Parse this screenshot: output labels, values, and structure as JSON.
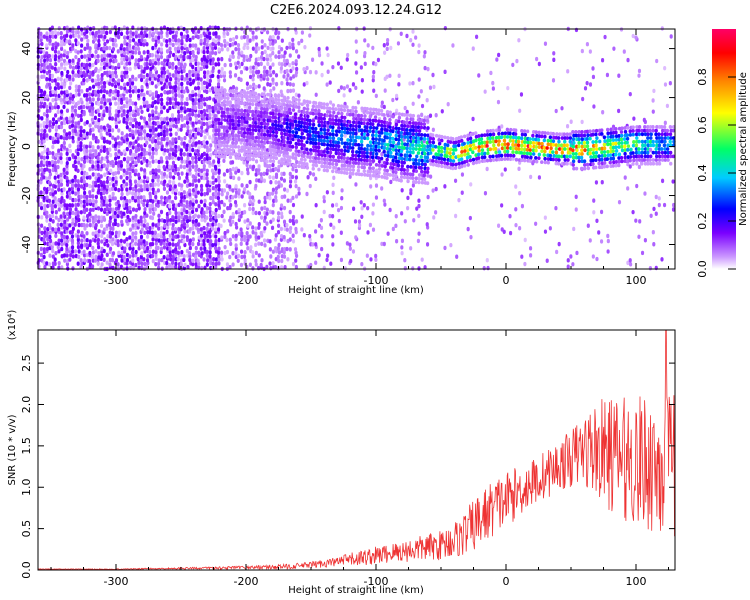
{
  "title": "C2E6.2024.093.12.24.G12",
  "chart_data": [
    {
      "type": "heatmap",
      "title": "C2E6.2024.093.12.24.G12",
      "xlabel": "Height of straight line (km)",
      "ylabel": "Frequency (Hz)",
      "xlim": [
        -360,
        130
      ],
      "ylim": [
        -50,
        48
      ],
      "x_ticks": [
        "-300",
        "-200",
        "-100",
        "0",
        "100"
      ],
      "y_ticks": [
        "40",
        "20",
        "0",
        "-20",
        "-40"
      ],
      "colorbar": {
        "label": "Normalized spectral amplitude",
        "range": [
          0.0,
          1.0
        ],
        "ticks": [
          "0.0",
          "0.2",
          "0.4",
          "0.6",
          "0.8"
        ],
        "colors": [
          "#ffffff",
          "#cc99ff",
          "#7a00ff",
          "#0000ff",
          "#00ccff",
          "#00ff66",
          "#ffff00",
          "#ff8800",
          "#ff0000",
          "#ff0066"
        ]
      },
      "ridge": {
        "x": [
          -220,
          -180,
          -150,
          -120,
          -100,
          -80,
          -60,
          -40,
          -20,
          0,
          20,
          40,
          60,
          80,
          100,
          120,
          130
        ],
        "frequency": [
          10,
          8,
          5,
          3,
          2,
          0,
          -1,
          -3,
          0,
          1,
          0,
          -1,
          -1,
          0,
          1,
          1,
          1
        ],
        "amplitude": [
          0.15,
          0.2,
          0.3,
          0.35,
          0.4,
          0.45,
          0.5,
          0.7,
          0.9,
          0.95,
          0.9,
          0.85,
          0.8,
          0.7,
          0.55,
          0.45,
          0.4
        ]
      }
    },
    {
      "type": "line",
      "xlabel": "Height of straight line (km)",
      "ylabel": "SNR (10 * v/v)",
      "y_multiplier_label": "(x10⁴)",
      "xlim": [
        -360,
        130
      ],
      "ylim": [
        0,
        2.9
      ],
      "x_ticks": [
        "-300",
        "-200",
        "-100",
        "0",
        "100"
      ],
      "y_ticks": [
        "0.0",
        "0.5",
        "1.0",
        "1.5",
        "2.0",
        "2.5"
      ],
      "color": "#ee3333",
      "envelope": {
        "x": [
          -360,
          -300,
          -250,
          -200,
          -170,
          -150,
          -130,
          -110,
          -90,
          -70,
          -50,
          -35,
          -20,
          -10,
          0,
          10,
          20,
          30,
          40,
          50,
          60,
          70,
          80,
          90,
          100,
          110,
          120,
          130
        ],
        "mean": [
          0.01,
          0.01,
          0.02,
          0.03,
          0.04,
          0.06,
          0.1,
          0.15,
          0.2,
          0.25,
          0.3,
          0.4,
          0.6,
          0.75,
          0.85,
          0.95,
          1.05,
          1.15,
          1.25,
          1.35,
          1.45,
          1.45,
          1.4,
          1.35,
          1.3,
          1.3,
          1.25,
          1.25
        ],
        "spread": [
          0.005,
          0.005,
          0.01,
          0.02,
          0.03,
          0.04,
          0.06,
          0.1,
          0.12,
          0.15,
          0.18,
          0.25,
          0.35,
          0.35,
          0.35,
          0.3,
          0.3,
          0.3,
          0.3,
          0.35,
          0.45,
          0.6,
          0.7,
          0.75,
          0.8,
          0.85,
          0.9,
          0.9
        ]
      },
      "peak": {
        "x": 123,
        "y": 2.9
      }
    }
  ]
}
